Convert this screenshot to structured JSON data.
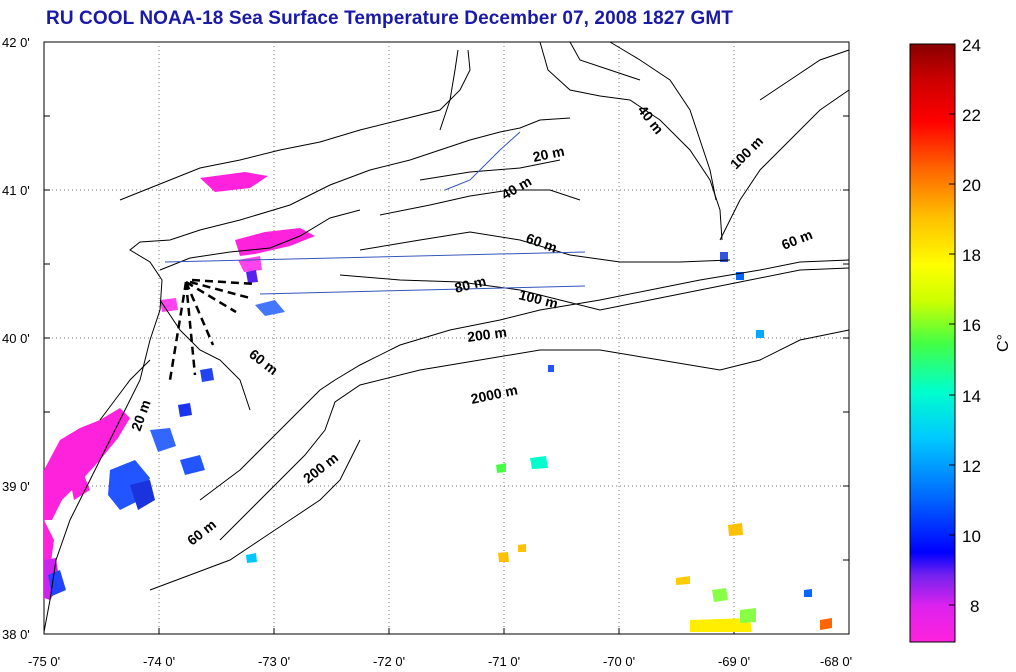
{
  "title": "RU COOL  NOAA-18 Sea Surface Temperature December 07, 2008 1827 GMT",
  "map": {
    "lon_ticks": [
      "-75 0'",
      "-74 0'",
      "-73 0'",
      "-72 0'",
      "-71 0'",
      "-70 0'",
      "-69 0'",
      "-68 0'"
    ],
    "lat_ticks": [
      "42 0'",
      "41 0'",
      "40 0'",
      "39 0'",
      "38 0'"
    ],
    "depth_labels": [
      "20 m",
      "40 m",
      "60 m",
      "80 m",
      "100 m",
      "200 m",
      "2000 m",
      "200 m",
      "60 m",
      "60 m",
      "20 m",
      "40 m",
      "100 m",
      "60 m"
    ]
  },
  "colorbar": {
    "label": "C°",
    "ticks": [
      "24",
      "22",
      "20",
      "18",
      "16",
      "14",
      "12",
      "10",
      "8"
    ],
    "range": [
      7,
      24
    ],
    "colors": [
      "#ff22dd",
      "#dd22ee",
      "#7722ee",
      "#0000ff",
      "#0066ff",
      "#00c8ff",
      "#00ffcc",
      "#44ff44",
      "#ccff00",
      "#ffff00",
      "#ffc000",
      "#ff6600",
      "#ff0000",
      "#cc0000",
      "#880000"
    ]
  },
  "colors": {
    "title": "#1a1aa8",
    "track": "#3355bb",
    "land_contour": "#000000"
  }
}
